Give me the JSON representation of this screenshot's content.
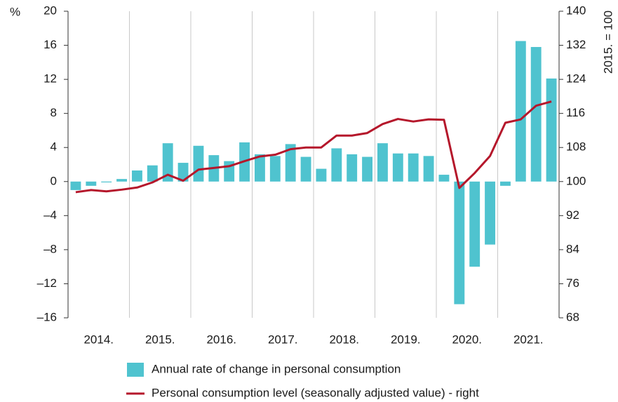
{
  "chart_data": {
    "type": "bar_line",
    "y_unit_label": "%",
    "y2_unit_label": "2015. = 100",
    "categories": [
      null,
      null,
      null,
      null,
      null,
      null,
      null,
      null,
      null,
      null,
      null,
      null,
      null,
      null,
      null,
      null,
      null,
      null,
      null,
      null,
      null,
      null,
      null,
      null,
      null,
      null,
      null,
      null,
      null,
      null,
      null,
      null
    ],
    "year_labels": [
      "2014.",
      "2015.",
      "2016.",
      "2017.",
      "2018.",
      "2019.",
      "2020.",
      "2021."
    ],
    "series": [
      {
        "name": "Annual rate of change in personal consumption",
        "type": "bar",
        "color": "#4fc3cf",
        "values": [
          -1.0,
          -0.5,
          -0.1,
          0.3,
          1.3,
          1.9,
          4.5,
          2.2,
          4.2,
          3.1,
          2.4,
          4.6,
          3.2,
          3.0,
          4.4,
          2.9,
          1.5,
          3.9,
          3.2,
          2.9,
          4.5,
          3.3,
          3.3,
          3.0,
          0.8,
          -14.4,
          -10.0,
          -7.4,
          -0.5,
          16.5,
          15.8,
          12.1
        ]
      },
      {
        "name": "Personal consumption level (seasonally adjusted value) - right",
        "type": "line",
        "axis": "y2",
        "color": "#b5172b",
        "values": [
          97.5,
          98.0,
          97.7,
          98.1,
          98.6,
          99.8,
          101.6,
          100.2,
          102.8,
          103.2,
          103.6,
          104.8,
          105.9,
          106.3,
          107.6,
          108.0,
          108.0,
          110.8,
          110.8,
          111.4,
          113.5,
          114.7,
          114.1,
          114.6,
          114.5,
          98.5,
          102.0,
          106.0,
          113.8,
          114.6,
          117.8,
          118.8
        ]
      }
    ],
    "ylim": [
      -16,
      20
    ],
    "yticks": [
      {
        "value": -16,
        "label": "–16"
      },
      {
        "value": -12,
        "label": "–12"
      },
      {
        "value": -8,
        "label": "–8"
      },
      {
        "value": -4,
        "label": "–4"
      },
      0,
      4,
      8,
      12,
      16,
      20
    ],
    "y2lim": [
      68,
      140
    ],
    "y2ticks": [
      68,
      76,
      84,
      92,
      100,
      108,
      116,
      124,
      132,
      140
    ],
    "grid": "x",
    "legend": "bottom"
  }
}
